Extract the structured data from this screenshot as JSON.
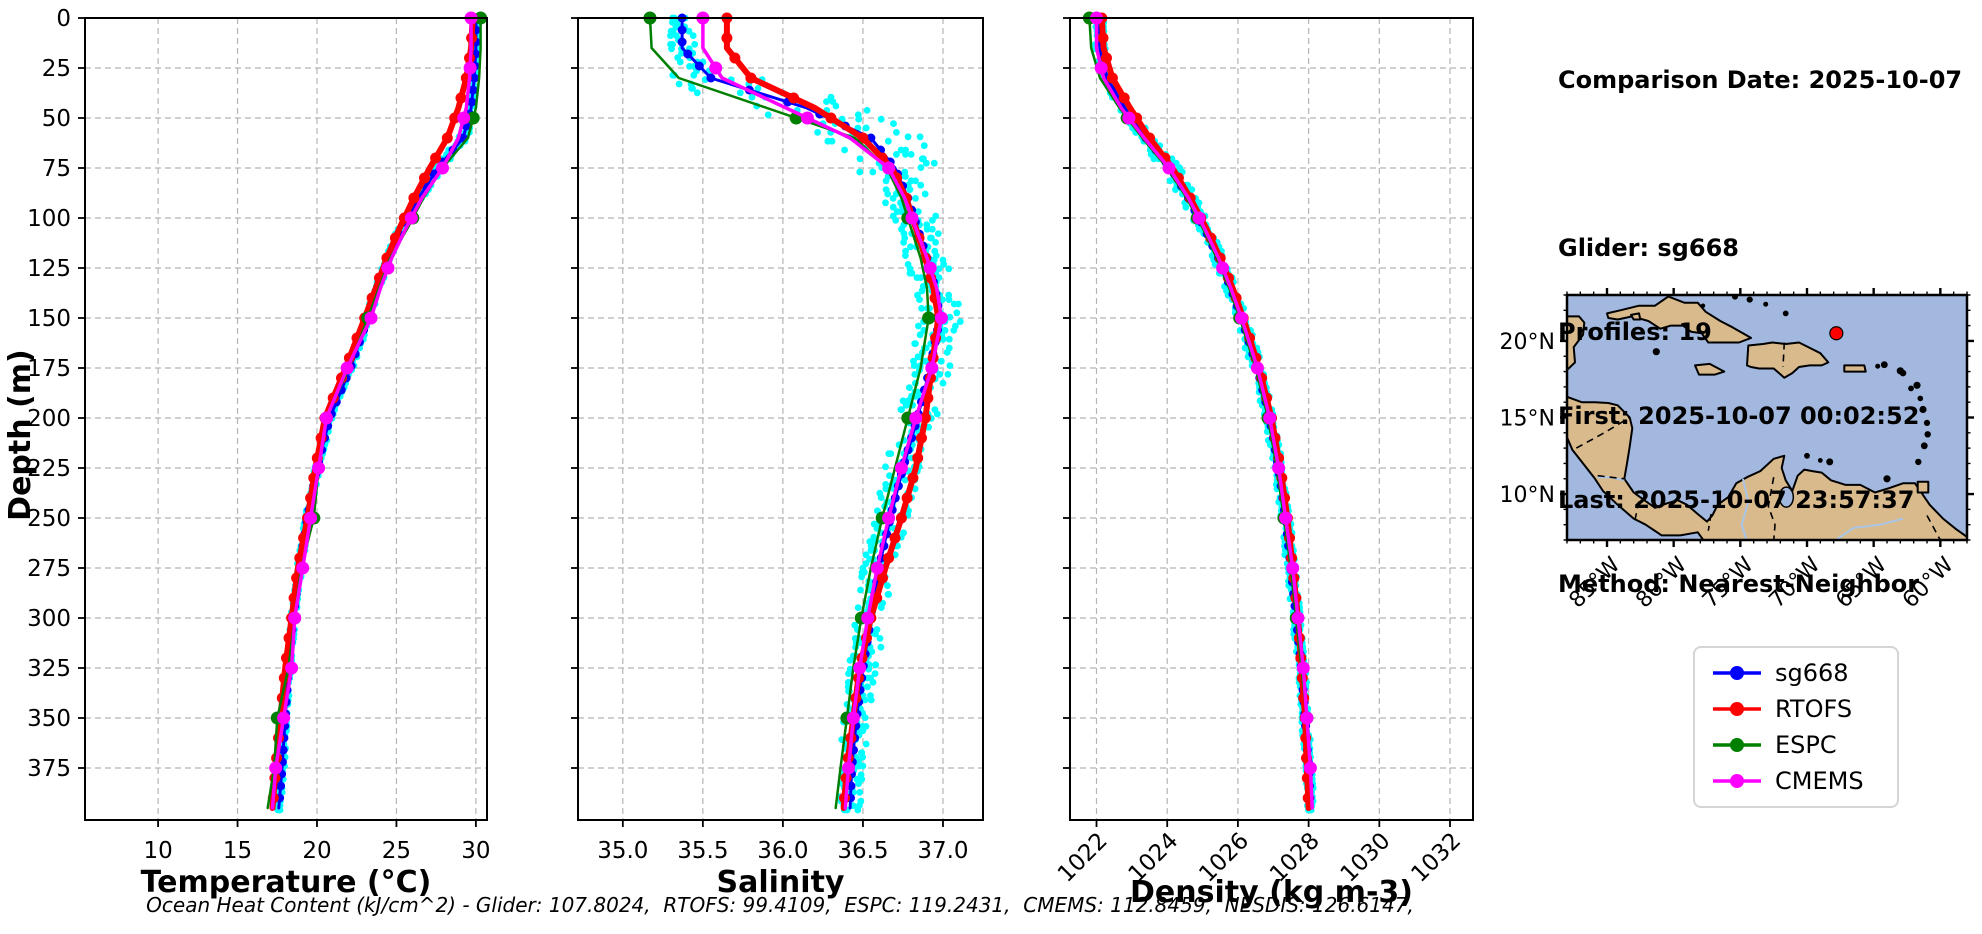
{
  "figure": {
    "background": "#ffffff"
  },
  "info": {
    "lines": [
      "Comparison Date: 2025-10-07",
      "",
      "Glider: sg668",
      "Profiles: 19",
      "First: 2025-10-07 00:02:52",
      "Last: 2025-10-07 23:57:37",
      "Method: Nearest-Neighbor"
    ]
  },
  "legend": {
    "items": [
      {
        "label": "sg668",
        "color": "#0000ff"
      },
      {
        "label": "RTOFS",
        "color": "#ff0000"
      },
      {
        "label": "ESPC",
        "color": "#008000"
      },
      {
        "label": "CMEMS",
        "color": "#ff00ff"
      }
    ]
  },
  "footer": {
    "text": "Ocean Heat Content (kJ/cm^2) - Glider: 107.8024,  RTOFS: 99.4109,  ESPC: 119.2431,  CMEMS: 112.8459,  NESDIS: 126.6147,"
  },
  "chart_data": [
    {
      "type": "line",
      "name": "temperature-profile",
      "xlabel": "Temperature (°C)",
      "ylabel": "Depth (m)",
      "xlim": [
        5.4,
        30.7
      ],
      "ylim": [
        0,
        401
      ],
      "xticks": [
        10,
        15,
        20,
        25,
        30
      ],
      "xtick_labels": [
        "10",
        "15",
        "20",
        "25",
        "30"
      ],
      "yticks": [
        0,
        25,
        50,
        75,
        100,
        125,
        150,
        175,
        200,
        225,
        250,
        275,
        300,
        325,
        350,
        375
      ],
      "rotate_xticks": false,
      "show_ytick_labels": true,
      "grid": true,
      "depths": [
        0,
        15,
        30,
        45,
        60,
        75,
        90,
        105,
        120,
        135,
        150,
        175,
        200,
        225,
        250,
        275,
        300,
        325,
        350,
        375,
        395
      ],
      "series": [
        {
          "name": "sg668",
          "color": "#0000ff",
          "line_width": 3,
          "marker_radius": 4.5,
          "marker_every_m": 6,
          "values": [
            30.0,
            30.0,
            29.9,
            29.7,
            29.2,
            27.6,
            26.4,
            25.3,
            24.5,
            23.8,
            23.2,
            22.1,
            20.8,
            20.0,
            19.4,
            18.9,
            18.5,
            18.2,
            18.0,
            17.8,
            17.6
          ]
        },
        {
          "name": "RTOFS",
          "color": "#ff0000",
          "line_width": 6,
          "marker_radius": 5.5,
          "marker_every_m": 10,
          "values": [
            29.8,
            29.7,
            29.4,
            28.9,
            28.2,
            27.1,
            26.1,
            25.2,
            24.4,
            23.7,
            23.0,
            21.8,
            20.5,
            19.9,
            19.4,
            18.8,
            18.4,
            18.0,
            17.7,
            17.4,
            17.2
          ]
        },
        {
          "name": "ESPC",
          "color": "#008000",
          "line_width": 2.5,
          "marker_radius": 6.5,
          "marker_every_m": 50,
          "values": [
            30.3,
            30.3,
            30.2,
            30.0,
            29.5,
            27.9,
            26.7,
            25.7,
            24.6,
            23.9,
            23.2,
            22.0,
            20.6,
            20.1,
            19.8,
            19.0,
            18.6,
            18.2,
            17.5,
            17.3,
            16.9
          ]
        },
        {
          "name": "CMEMS",
          "color": "#ff00ff",
          "line_width": 3.5,
          "marker_radius": 6.5,
          "marker_every_m": 25,
          "values": [
            29.7,
            29.7,
            29.6,
            29.4,
            28.9,
            27.9,
            26.6,
            25.6,
            24.7,
            24.0,
            23.4,
            21.9,
            20.6,
            20.1,
            19.6,
            19.1,
            18.6,
            18.4,
            17.9,
            17.4,
            17.2
          ]
        }
      ],
      "glider_scatter": {
        "color": "#00ffff",
        "point_radius": 3.4,
        "spread_profile": [
          [
            0,
            0.07
          ],
          [
            40,
            0.1
          ],
          [
            55,
            0.3
          ],
          [
            75,
            0.35
          ],
          [
            110,
            0.2
          ],
          [
            402,
            0.15
          ]
        ]
      }
    },
    {
      "type": "line",
      "name": "salinity-profile",
      "xlabel": "Salinity",
      "xlim": [
        34.72,
        37.25
      ],
      "ylim": [
        0,
        401
      ],
      "xticks": [
        35.0,
        35.5,
        36.0,
        36.5,
        37.0
      ],
      "xtick_labels": [
        "35.0",
        "35.5",
        "36.0",
        "36.5",
        "37.0"
      ],
      "yticks": [
        0,
        25,
        50,
        75,
        100,
        125,
        150,
        175,
        200,
        225,
        250,
        275,
        300,
        325,
        350,
        375
      ],
      "rotate_xticks": false,
      "show_ytick_labels": false,
      "grid": true,
      "depths": [
        0,
        15,
        30,
        45,
        60,
        75,
        90,
        105,
        120,
        135,
        150,
        175,
        200,
        225,
        250,
        275,
        300,
        325,
        350,
        375,
        395
      ],
      "series": [
        {
          "name": "sg668",
          "color": "#0000ff",
          "line_width": 3,
          "marker_radius": 4.5,
          "marker_every_m": 6,
          "values": [
            35.37,
            35.37,
            35.55,
            36.15,
            36.55,
            36.7,
            36.78,
            36.84,
            36.9,
            36.95,
            36.98,
            36.92,
            36.84,
            36.75,
            36.67,
            36.6,
            36.55,
            36.5,
            36.46,
            36.43,
            36.42
          ]
        },
        {
          "name": "RTOFS",
          "color": "#ff0000",
          "line_width": 6,
          "marker_radius": 5.5,
          "marker_every_m": 10,
          "values": [
            35.65,
            35.65,
            35.8,
            36.2,
            36.5,
            36.68,
            36.77,
            36.83,
            36.89,
            36.94,
            36.97,
            36.93,
            36.89,
            36.83,
            36.74,
            36.64,
            36.55,
            36.48,
            36.44,
            36.4,
            36.38
          ]
        },
        {
          "name": "ESPC",
          "color": "#008000",
          "line_width": 2.5,
          "marker_radius": 6.5,
          "marker_every_m": 50,
          "values": [
            35.17,
            35.18,
            35.35,
            35.9,
            36.45,
            36.65,
            36.74,
            36.8,
            36.86,
            36.9,
            36.91,
            36.86,
            36.78,
            36.7,
            36.62,
            36.55,
            36.49,
            36.44,
            36.4,
            36.36,
            36.33
          ]
        },
        {
          "name": "CMEMS",
          "color": "#ff00ff",
          "line_width": 3.5,
          "marker_radius": 6.5,
          "marker_every_m": 25,
          "values": [
            35.5,
            35.5,
            35.62,
            36.02,
            36.42,
            36.66,
            36.76,
            36.83,
            36.9,
            36.96,
            36.99,
            36.93,
            36.83,
            36.74,
            36.66,
            36.59,
            36.53,
            36.48,
            36.44,
            36.41,
            36.39
          ]
        }
      ],
      "glider_scatter": {
        "color": "#00ffff",
        "point_radius": 3.4,
        "spread_profile": [
          [
            0,
            0.06
          ],
          [
            25,
            0.1
          ],
          [
            35,
            0.45
          ],
          [
            65,
            0.35
          ],
          [
            90,
            0.15
          ],
          [
            402,
            0.07
          ]
        ]
      }
    },
    {
      "type": "line",
      "name": "density-profile",
      "xlabel": "Density (kg m-3)",
      "xlim": [
        1021.25,
        1032.65
      ],
      "ylim": [
        0,
        401
      ],
      "xticks": [
        1022,
        1024,
        1026,
        1028,
        1030,
        1032
      ],
      "xtick_labels": [
        "1022",
        "1024",
        "1026",
        "1028",
        "1030",
        "1032"
      ],
      "yticks": [
        0,
        25,
        50,
        75,
        100,
        125,
        150,
        175,
        200,
        225,
        250,
        275,
        300,
        325,
        350,
        375
      ],
      "rotate_xticks": true,
      "show_ytick_labels": false,
      "grid": true,
      "depths": [
        0,
        15,
        30,
        45,
        60,
        75,
        90,
        105,
        120,
        135,
        150,
        175,
        200,
        225,
        250,
        275,
        300,
        325,
        350,
        375,
        395
      ],
      "series": [
        {
          "name": "sg668",
          "color": "#0000ff",
          "line_width": 3,
          "marker_radius": 4.5,
          "marker_every_m": 6,
          "values": [
            1022.1,
            1022.1,
            1022.3,
            1022.8,
            1023.4,
            1024.1,
            1024.6,
            1025.05,
            1025.45,
            1025.8,
            1026.1,
            1026.55,
            1026.9,
            1027.15,
            1027.35,
            1027.5,
            1027.65,
            1027.8,
            1027.9,
            1028.0,
            1028.05
          ]
        },
        {
          "name": "RTOFS",
          "color": "#ff0000",
          "line_width": 6,
          "marker_radius": 5.5,
          "marker_every_m": 10,
          "values": [
            1022.15,
            1022.2,
            1022.45,
            1022.95,
            1023.5,
            1024.15,
            1024.65,
            1025.1,
            1025.5,
            1025.85,
            1026.15,
            1026.6,
            1026.95,
            1027.2,
            1027.4,
            1027.55,
            1027.7,
            1027.8,
            1027.9,
            1027.95,
            1028.0
          ]
        },
        {
          "name": "ESPC",
          "color": "#008000",
          "line_width": 2.5,
          "marker_radius": 6.5,
          "marker_every_m": 50,
          "values": [
            1021.8,
            1021.85,
            1022.1,
            1022.65,
            1023.3,
            1024.0,
            1024.55,
            1025.0,
            1025.4,
            1025.75,
            1026.05,
            1026.5,
            1026.85,
            1027.1,
            1027.3,
            1027.5,
            1027.65,
            1027.8,
            1027.95,
            1028.05,
            1028.1
          ]
        },
        {
          "name": "CMEMS",
          "color": "#ff00ff",
          "line_width": 3.5,
          "marker_radius": 6.5,
          "marker_every_m": 25,
          "values": [
            1022.0,
            1022.0,
            1022.2,
            1022.7,
            1023.35,
            1024.05,
            1024.6,
            1025.05,
            1025.45,
            1025.8,
            1026.1,
            1026.55,
            1026.9,
            1027.15,
            1027.35,
            1027.55,
            1027.7,
            1027.85,
            1027.95,
            1028.05,
            1028.1
          ]
        }
      ],
      "glider_scatter": {
        "color": "#00ffff",
        "point_radius": 3.4,
        "spread_profile": [
          [
            0,
            0.12
          ],
          [
            40,
            0.18
          ],
          [
            70,
            0.28
          ],
          [
            120,
            0.18
          ],
          [
            402,
            0.1
          ]
        ]
      }
    }
  ],
  "map": {
    "extent": {
      "lon_min": -88,
      "lon_max": -58,
      "lat_min": 7,
      "lat_max": 23
    },
    "xticks": [
      {
        "lon": -85,
        "label": "85°W"
      },
      {
        "lon": -80,
        "label": "80°W"
      },
      {
        "lon": -75,
        "label": "75°W"
      },
      {
        "lon": -70,
        "label": "70°W"
      },
      {
        "lon": -65,
        "label": "65°W"
      },
      {
        "lon": -60,
        "label": "60°W"
      }
    ],
    "yticks": [
      {
        "lat": 20,
        "label": "20°N"
      },
      {
        "lat": 15,
        "label": "15°N"
      },
      {
        "lat": 10,
        "label": "10°N"
      }
    ],
    "marker": {
      "lon": -67.8,
      "lat": 20.5,
      "color": "#ff0000"
    },
    "ocean_color": "#a3b8de",
    "land_color": "#d9ba8c",
    "coast_color": "#000000",
    "river_color": "#a9c6e8"
  }
}
